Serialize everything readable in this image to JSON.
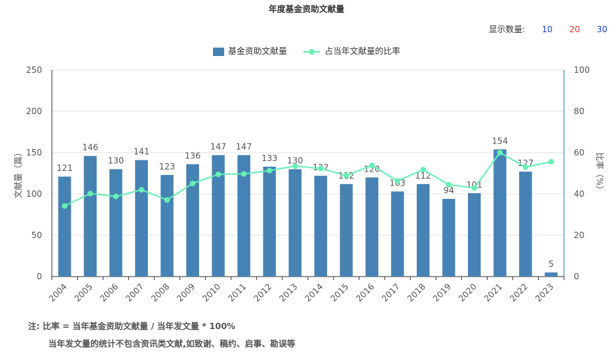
{
  "title": "年度基金资助文献量",
  "display_count": {
    "label": "显示数量:",
    "options": [
      "10",
      "20",
      "30"
    ],
    "option_colors": [
      "#1f3fcf",
      "#e53333",
      "#1f3fcf"
    ]
  },
  "colors": {
    "bar": "#4682b4",
    "line": "#66f0b4",
    "axis_right": "#1f77b4",
    "grid": "#e0e0e0"
  },
  "notes": {
    "line1": "注: 比率 = 当年基金资助文献量 / 当年发文量 * 100%",
    "line2": "当年发文量的统计不包含资讯类文献,如致谢、稿约、启事、勘误等"
  },
  "chart_data": {
    "type": "bar",
    "categories": [
      "2004",
      "2005",
      "2006",
      "2007",
      "2008",
      "2009",
      "2010",
      "2011",
      "2012",
      "2013",
      "2014",
      "2015",
      "2016",
      "2017",
      "2018",
      "2019",
      "2020",
      "2021",
      "2022",
      "2023"
    ],
    "series": [
      {
        "name": "基金资助文献量",
        "type": "bar",
        "axis": "left",
        "values": [
          121,
          146,
          130,
          141,
          123,
          136,
          147,
          147,
          133,
          130,
          122,
          112,
          120,
          103,
          112,
          94,
          101,
          154,
          127,
          5
        ]
      },
      {
        "name": "占当年文献量的比率",
        "type": "line",
        "axis": "right",
        "values": [
          34.2,
          40.2,
          38.8,
          42.0,
          37.1,
          45.1,
          49.5,
          49.7,
          51.3,
          53.5,
          52.3,
          48.9,
          53.8,
          46.3,
          51.8,
          44.5,
          42.9,
          60.0,
          53.0,
          55.6
        ]
      }
    ],
    "ylabel": "文献量（篇）",
    "y2label": "比率（%）",
    "ylim": [
      0,
      250
    ],
    "y2lim": [
      0,
      100
    ],
    "yticks": [
      0,
      50,
      100,
      150,
      200,
      250
    ],
    "y2ticks": [
      0,
      20,
      40,
      60,
      80,
      100
    ],
    "grid": true,
    "legend_position": "top-center"
  }
}
